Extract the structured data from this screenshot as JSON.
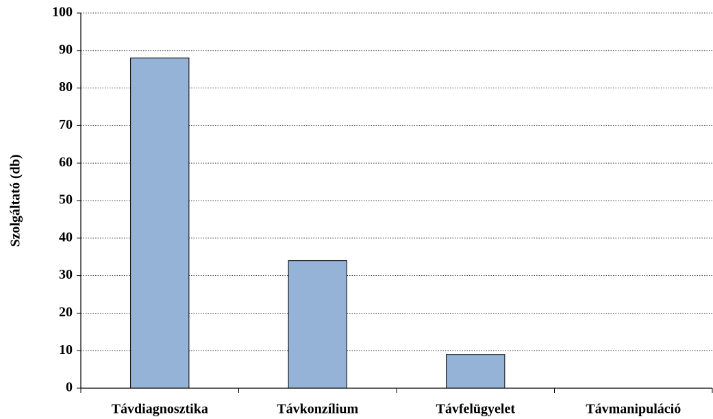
{
  "chart_data": {
    "type": "bar",
    "y_label": "Szolgáltató (db)",
    "categories": [
      "Távdiagnosztika",
      "Távkonzílium",
      "Távfelügyelet",
      "Távmanipuláció"
    ],
    "values": [
      88,
      34,
      9,
      0
    ],
    "color": "#95b3d7",
    "ylim": [
      0,
      100
    ],
    "yticks": [
      0,
      10,
      20,
      30,
      40,
      50,
      60,
      70,
      80,
      90,
      100
    ],
    "grid": true
  }
}
